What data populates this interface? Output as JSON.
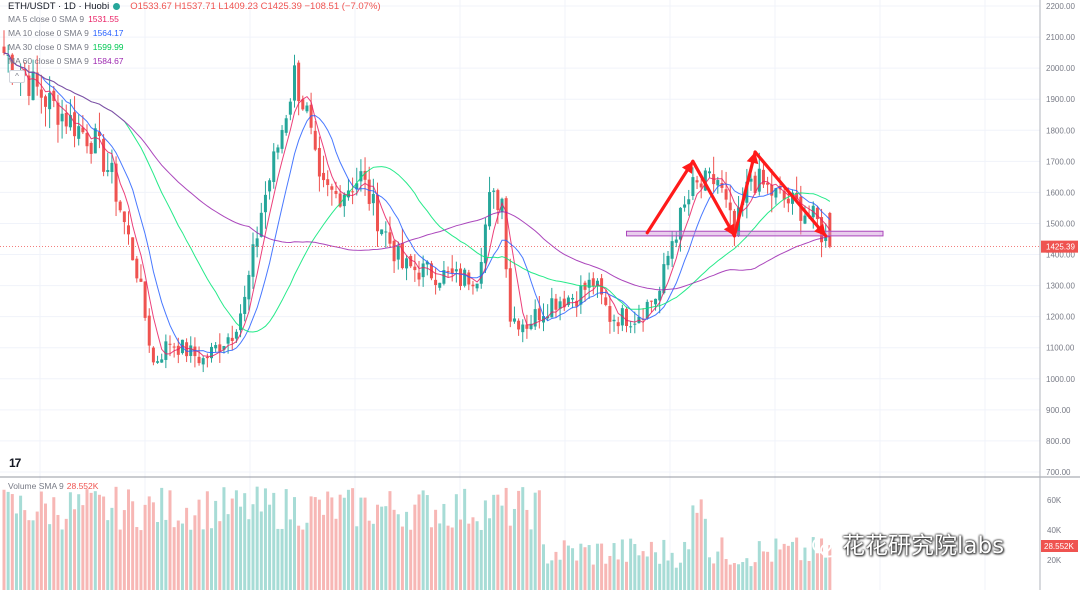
{
  "header": {
    "symbol": "ETH/USDT · 1D · Huobi",
    "ohlc": "O1533.67 H1537.71 L1409.23 C1425.39 −108.51 (−7.07%)"
  },
  "moving_averages": [
    {
      "label": "MA 5 close 0 SMA 9",
      "value": "1531.55",
      "color": "#e91e63"
    },
    {
      "label": "MA 10 close 0 SMA 9",
      "value": "1564.17",
      "color": "#2962ff"
    },
    {
      "label": "MA 30 close 0 SMA 9",
      "value": "1599.99",
      "color": "#00e676"
    },
    {
      "label": "MA 60 close 0 SMA 9",
      "value": "1584.67",
      "color": "#9c27b0"
    }
  ],
  "volume_label": "Volume SMA 9",
  "volume_value": "28.552K",
  "logo_text": "17",
  "watermark": "花花研究院labs",
  "colors": {
    "up": "#26a69a",
    "down": "#ef5350",
    "arrow": "#ff1a1a",
    "zone": "#ce93d8"
  },
  "chart_data": {
    "type": "candlestick",
    "price_axis": {
      "range": [
        700,
        2200
      ],
      "ticks": [
        "2200.00",
        "2100.00",
        "2000.00",
        "1900.00",
        "1800.00",
        "1700.00",
        "1600.00",
        "1500.00",
        "1400.00",
        "1300.00",
        "1200.00",
        "1100.00",
        "1000.00",
        "900.00",
        "800.00",
        "700.00"
      ],
      "current_price": "1425.39"
    },
    "volume_axis": {
      "ticks": [
        "60K",
        "40K",
        "20K"
      ],
      "current": "28.552K"
    },
    "close_path": [
      [
        0,
        2050
      ],
      [
        10,
        1900
      ],
      [
        22,
        1760
      ],
      [
        26,
        1650
      ],
      [
        32,
        1350
      ],
      [
        36,
        1050
      ],
      [
        40,
        1120
      ],
      [
        48,
        1060
      ],
      [
        55,
        1150
      ],
      [
        58,
        1250
      ],
      [
        62,
        1540
      ],
      [
        66,
        1750
      ],
      [
        70,
        1980
      ],
      [
        73,
        1850
      ],
      [
        76,
        1610
      ],
      [
        80,
        1590
      ],
      [
        86,
        1650
      ],
      [
        90,
        1520
      ],
      [
        96,
        1360
      ],
      [
        104,
        1340
      ],
      [
        110,
        1320
      ],
      [
        114,
        1340
      ],
      [
        117,
        1570
      ],
      [
        120,
        1580
      ],
      [
        122,
        1200
      ],
      [
        126,
        1180
      ],
      [
        132,
        1250
      ],
      [
        138,
        1270
      ],
      [
        142,
        1310
      ],
      [
        146,
        1200
      ],
      [
        152,
        1200
      ],
      [
        158,
        1280
      ],
      [
        161,
        1450
      ],
      [
        166,
        1610
      ],
      [
        172,
        1640
      ],
      [
        176,
        1460
      ],
      [
        180,
        1650
      ],
      [
        186,
        1590
      ],
      [
        192,
        1550
      ],
      [
        196,
        1500
      ],
      [
        198,
        1440
      ]
    ],
    "annotations": {
      "support_zone": [
        1460,
        1475
      ],
      "pattern": "double top",
      "arrow_points": [
        [
          155,
          1470
        ],
        [
          166,
          1700
        ],
        [
          176,
          1460
        ],
        [
          181,
          1730
        ],
        [
          198,
          1460
        ]
      ]
    }
  }
}
